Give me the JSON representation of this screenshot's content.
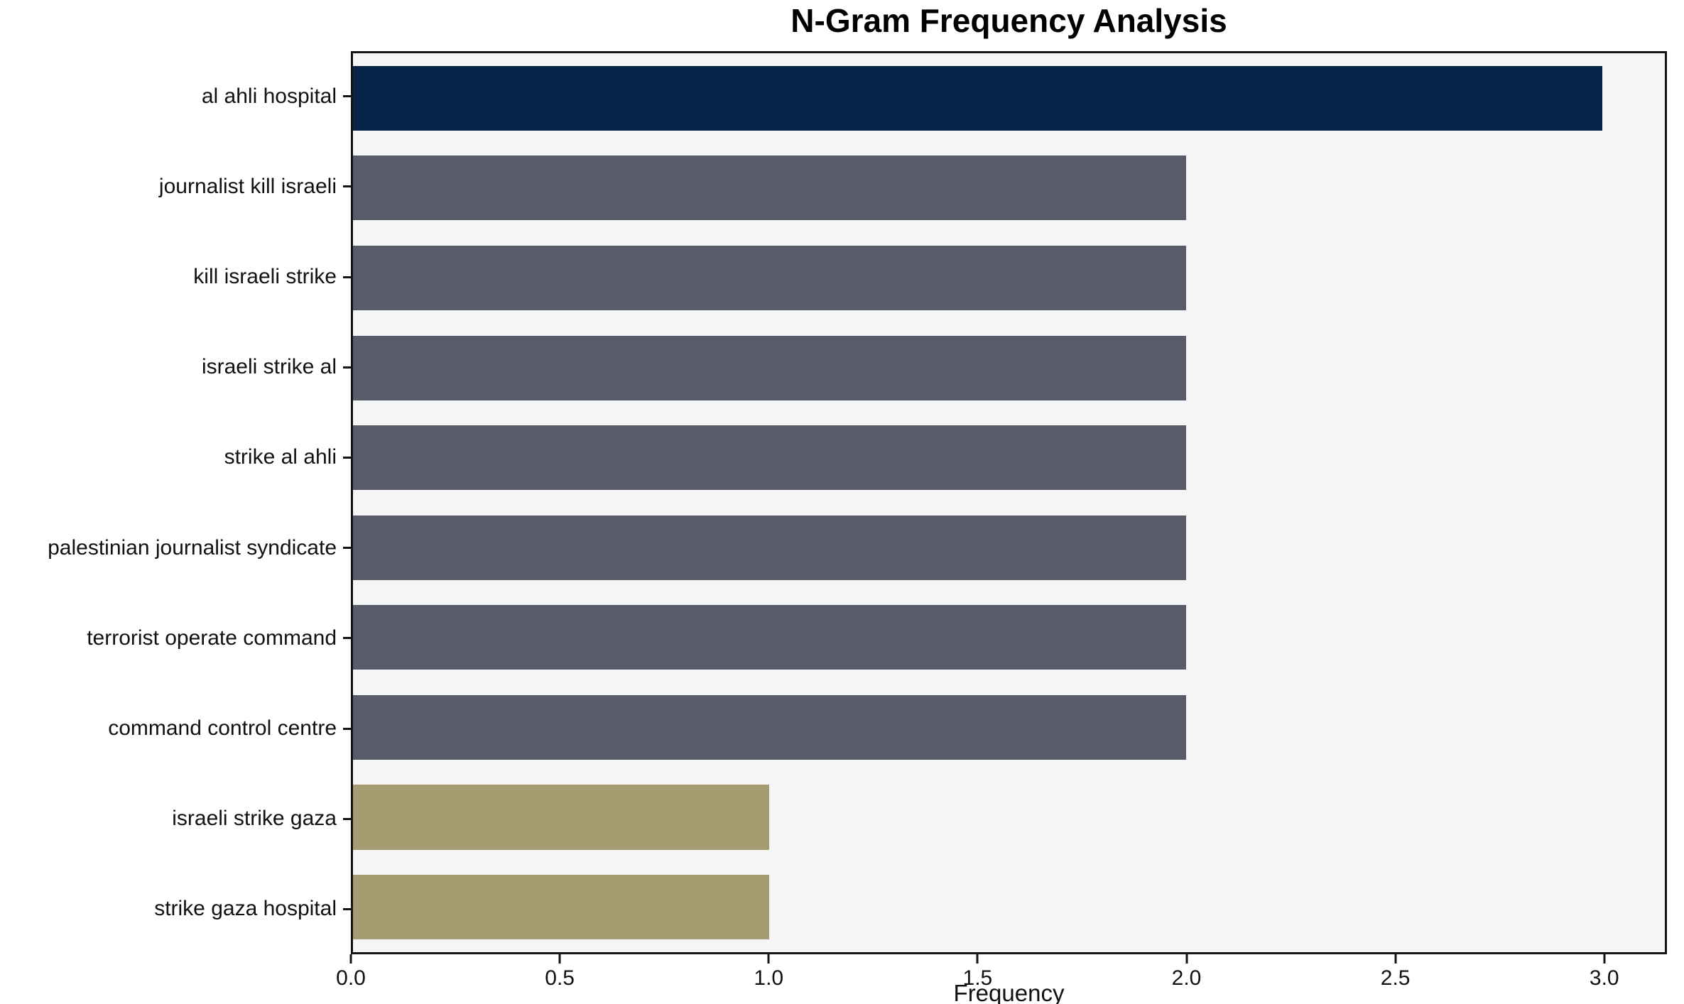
{
  "chart_data": {
    "type": "bar",
    "orientation": "horizontal",
    "title": "N-Gram Frequency Analysis",
    "xlabel": "Frequency",
    "ylabel": "",
    "categories": [
      "al ahli hospital",
      "journalist kill israeli",
      "kill israeli strike",
      "israeli strike al",
      "strike al ahli",
      "palestinian journalist syndicate",
      "terrorist operate command",
      "command control centre",
      "israeli strike gaza",
      "strike gaza hospital"
    ],
    "values": [
      3,
      2,
      2,
      2,
      2,
      2,
      2,
      2,
      1,
      1
    ],
    "bar_colors": [
      "#062348",
      "#575b6a",
      "#575b6a",
      "#575b6a",
      "#575b6a",
      "#575b6a",
      "#575b6a",
      "#575b6a",
      "#a59c72",
      "#a59c72"
    ],
    "xticks": [
      "0.0",
      "0.5",
      "1.0",
      "1.5",
      "2.0",
      "2.5",
      "3.0"
    ],
    "xtick_values": [
      0,
      0.5,
      1,
      1.5,
      2,
      2.5,
      3
    ],
    "xlim": [
      0,
      3.15
    ],
    "grid": false,
    "legend_position": "none",
    "colors": {
      "highlight_bar": "#062348",
      "mid_bar": "#575b6a",
      "low_bar": "#a59c72",
      "plot_background": "#f5f5f6",
      "figure_background": "#ffffff",
      "spine": "#141414",
      "text": "#111111"
    }
  }
}
